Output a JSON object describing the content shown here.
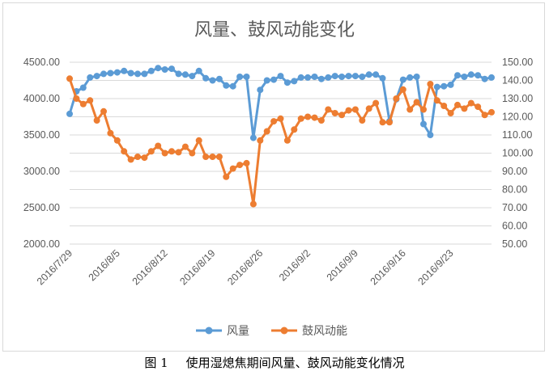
{
  "chart_data": {
    "type": "line",
    "title": "风量、鼓风动能变化",
    "x": [
      "2016/7/29",
      "2016/7/30",
      "2016/7/31",
      "2016/8/1",
      "2016/8/2",
      "2016/8/3",
      "2016/8/4",
      "2016/8/5",
      "2016/8/6",
      "2016/8/7",
      "2016/8/8",
      "2016/8/9",
      "2016/8/10",
      "2016/8/11",
      "2016/8/12",
      "2016/8/13",
      "2016/8/14",
      "2016/8/15",
      "2016/8/16",
      "2016/8/17",
      "2016/8/18",
      "2016/8/19",
      "2016/8/20",
      "2016/8/21",
      "2016/8/22",
      "2016/8/23",
      "2016/8/24",
      "2016/8/25",
      "2016/8/26",
      "2016/8/27",
      "2016/8/28",
      "2016/8/29",
      "2016/8/30",
      "2016/8/31",
      "2016/9/1",
      "2016/9/2",
      "2016/9/3",
      "2016/9/4",
      "2016/9/5",
      "2016/9/6",
      "2016/9/7",
      "2016/9/8",
      "2016/9/9",
      "2016/9/10",
      "2016/9/11",
      "2016/9/12",
      "2016/9/13",
      "2016/9/14",
      "2016/9/15",
      "2016/9/16",
      "2016/9/17",
      "2016/9/18",
      "2016/9/19",
      "2016/9/20",
      "2016/9/21",
      "2016/9/22",
      "2016/9/23",
      "2016/9/24",
      "2016/9/25",
      "2016/9/26",
      "2016/9/27",
      "2016/9/28",
      "2016/9/29"
    ],
    "x_tick_labels": [
      "2016/7/29",
      "2016/8/5",
      "2016/8/12",
      "2016/8/19",
      "2016/8/26",
      "2016/9/2",
      "2016/9/9",
      "2016/9/16",
      "2016/9/23"
    ],
    "series": [
      {
        "name": "风量",
        "axis": "left",
        "color": "#5b9bd5",
        "values": [
          3790,
          4100,
          4150,
          4290,
          4310,
          4340,
          4350,
          4360,
          4380,
          4350,
          4340,
          4340,
          4380,
          4420,
          4400,
          4410,
          4340,
          4330,
          4310,
          4380,
          4280,
          4250,
          4270,
          4180,
          4170,
          4300,
          4300,
          3460,
          4120,
          4250,
          4260,
          4310,
          4220,
          4240,
          4290,
          4290,
          4300,
          4270,
          4290,
          4310,
          4300,
          4310,
          4310,
          4300,
          4330,
          4330,
          4280,
          3690,
          3990,
          4260,
          4290,
          4300,
          3650,
          3500,
          4160,
          4170,
          4190,
          4320,
          4300,
          4330,
          4320,
          4270,
          4290
        ]
      },
      {
        "name": "鼓风动能",
        "axis": "right",
        "color": "#ed7d31",
        "values": [
          141,
          130,
          127,
          129,
          118,
          123,
          111,
          107,
          101,
          96.5,
          98,
          97.5,
          101,
          104,
          100,
          101,
          100.5,
          103.5,
          100,
          107,
          98,
          98,
          98,
          87,
          91.5,
          93.5,
          94.5,
          72,
          107,
          112,
          117.5,
          119,
          107,
          113,
          119,
          120,
          119.5,
          118,
          124,
          122,
          121,
          123.5,
          124,
          118,
          124.5,
          127.5,
          117,
          117,
          130,
          135,
          124,
          128,
          124,
          138,
          129,
          126,
          122,
          126.5,
          124.5,
          127.5,
          125.5,
          121,
          122.5
        ]
      }
    ],
    "left_axis": {
      "min": 2000,
      "max": 4500,
      "step": 500,
      "tick_labels": [
        "2000.00",
        "2500.00",
        "3000.00",
        "3500.00",
        "4000.00",
        "4500.00"
      ]
    },
    "right_axis": {
      "min": 50,
      "max": 150,
      "step": 10,
      "tick_labels": [
        "50.00",
        "60.00",
        "70.00",
        "80.00",
        "90.00",
        "100.00",
        "110.00",
        "120.00",
        "130.00",
        "140.00",
        "150.00"
      ]
    },
    "grid": true,
    "legend_position": "bottom"
  },
  "caption": {
    "figure_number": "图 1",
    "text": "使用湿熄焦期间风量、鼓风动能变化情况"
  }
}
